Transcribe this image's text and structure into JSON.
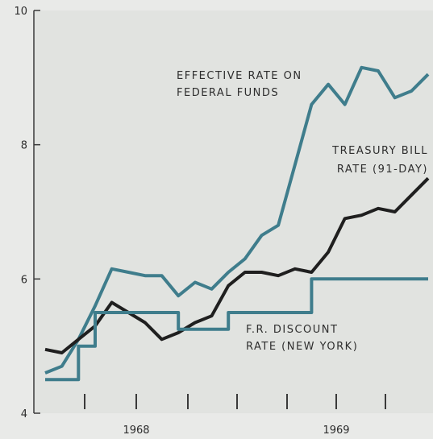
{
  "chart_data": {
    "type": "line",
    "title": "",
    "xlabel": "",
    "ylabel": "",
    "ylim": [
      4,
      10
    ],
    "y_ticks": [
      4,
      6,
      8,
      10
    ],
    "y_tick_labels": [
      "4",
      "6",
      "8",
      "10"
    ],
    "x_tick_labels": [
      "1968",
      "1969"
    ],
    "grid": false,
    "colors": {
      "federal_funds": "#3f7d8c",
      "treasury_bill": "#1f1f1f",
      "discount_rate": "#3f7d8c",
      "plot_bg": "#e1e3e0"
    },
    "series": [
      {
        "name": "EFFECTIVE RATE ON FEDERAL FUNDS",
        "label_lines": [
          "EFFECTIVE RATE ON",
          "FEDERAL FUNDS"
        ],
        "style": "line",
        "x": [
          0,
          1,
          2,
          3,
          4,
          5,
          6,
          7,
          8,
          9,
          10,
          11,
          12,
          13,
          14,
          15,
          16,
          17,
          18,
          19,
          20,
          21,
          22,
          23
        ],
        "values": [
          4.6,
          4.7,
          5.1,
          5.6,
          6.15,
          6.1,
          6.05,
          6.05,
          5.75,
          5.95,
          5.85,
          6.1,
          6.3,
          6.65,
          6.8,
          7.7,
          8.6,
          8.9,
          8.6,
          9.15,
          9.1,
          8.7,
          8.8,
          9.05
        ]
      },
      {
        "name": "TREASURY BILL RATE (91-DAY)",
        "label_lines": [
          "TREASURY BILL",
          "RATE (91-DAY)"
        ],
        "style": "line",
        "x": [
          0,
          1,
          2,
          3,
          4,
          5,
          6,
          7,
          8,
          9,
          10,
          11,
          12,
          13,
          14,
          15,
          16,
          17,
          18,
          19,
          20,
          21,
          22,
          23
        ],
        "values": [
          4.95,
          4.9,
          5.1,
          5.3,
          5.65,
          5.5,
          5.35,
          5.1,
          5.2,
          5.35,
          5.45,
          5.9,
          6.1,
          6.1,
          6.05,
          6.15,
          6.1,
          6.4,
          6.9,
          6.95,
          7.05,
          7.0,
          7.25,
          7.5
        ]
      },
      {
        "name": "F.R. DISCOUNT RATE (NEW YORK)",
        "label_lines": [
          "F.R. DISCOUNT",
          "RATE (NEW YORK)"
        ],
        "style": "step",
        "x": [
          0,
          2,
          3,
          8,
          11,
          16,
          24
        ],
        "values": [
          4.5,
          5.0,
          5.5,
          5.25,
          5.5,
          6.0,
          6.0
        ]
      }
    ]
  }
}
